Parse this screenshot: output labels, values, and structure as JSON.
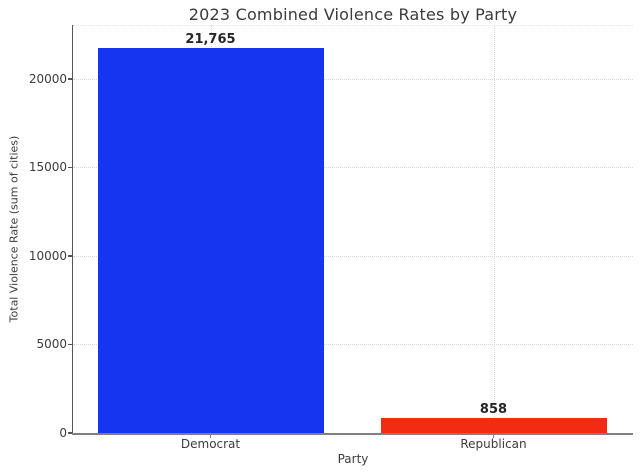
{
  "chart_data": {
    "type": "bar",
    "title": "2023 Combined Violence Rates by Party",
    "xlabel": "Party",
    "ylabel": "Total Violence Rate (sum of cities)",
    "categories": [
      "Democrat",
      "Republican"
    ],
    "values": [
      21765,
      858
    ],
    "value_labels": [
      "21,765",
      "858"
    ],
    "bar_colors": [
      "#1535f0",
      "#f22b12"
    ],
    "yticks": [
      0,
      5000,
      10000,
      15000,
      20000
    ],
    "ytick_labels": [
      "0",
      "5000",
      "10000",
      "15000",
      "20000"
    ],
    "ylim": [
      0,
      23050
    ],
    "grid": "dotted on both axes",
    "legend": "none"
  },
  "colors": {
    "democrat_bar": "#1535f0",
    "republican_bar": "#f22b12",
    "title_text": "#3a3a3a",
    "tick_text": "#3d3d3d",
    "spine": "#555555",
    "gridline": "#d9d9d9",
    "background": "#ffffff"
  }
}
